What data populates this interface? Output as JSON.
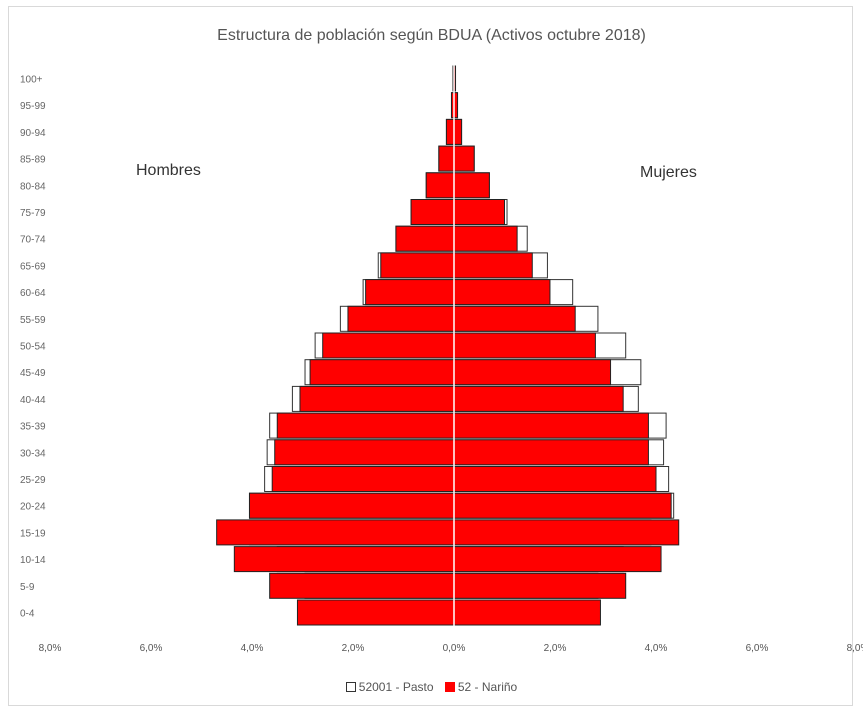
{
  "chart_data": {
    "type": "bar",
    "orientation": "horizontal",
    "title": "Estructura de población según BDUA (Activos octubre 2018)",
    "side_labels": {
      "left": "Hombres",
      "right": "Mujeres"
    },
    "categories": [
      "100+",
      "95-99",
      "90-94",
      "85-89",
      "80-84",
      "75-79",
      "70-74",
      "65-69",
      "60-64",
      "55-59",
      "50-54",
      "45-49",
      "40-44",
      "35-39",
      "30-34",
      "25-29",
      "20-24",
      "15-19",
      "10-14",
      "5-9",
      "0-4"
    ],
    "x_ticks": [
      "8,0%",
      "6,0%",
      "4,0%",
      "2,0%",
      "0,0%",
      "2,0%",
      "4,0%",
      "6,0%",
      "8,0%"
    ],
    "xlim": [
      -8.0,
      8.0
    ],
    "grid": false,
    "legend_position": "bottom",
    "series": [
      {
        "name": "52001 - Pasto",
        "color": "#ffffff",
        "stroke": "#333333",
        "men": [
          0.02,
          0.05,
          0.15,
          0.3,
          0.55,
          0.85,
          1.15,
          1.5,
          1.8,
          2.25,
          2.75,
          2.95,
          3.2,
          3.65,
          3.7,
          3.75,
          4.05,
          4.05,
          3.5,
          2.95,
          2.75
        ],
        "women": [
          0.03,
          0.07,
          0.15,
          0.4,
          0.7,
          1.05,
          1.45,
          1.85,
          2.35,
          2.85,
          3.4,
          3.7,
          3.65,
          4.2,
          4.15,
          4.25,
          4.35,
          3.9,
          3.35,
          2.85,
          2.65
        ]
      },
      {
        "name": "52 - Nariño",
        "color": "#ff0000",
        "stroke": "#222222",
        "men": [
          0.02,
          0.05,
          0.15,
          0.3,
          0.55,
          0.85,
          1.15,
          1.45,
          1.75,
          2.1,
          2.6,
          2.85,
          3.05,
          3.5,
          3.55,
          3.6,
          4.05,
          4.7,
          4.35,
          3.65,
          3.1
        ],
        "women": [
          0.03,
          0.07,
          0.15,
          0.4,
          0.7,
          1.0,
          1.25,
          1.55,
          1.9,
          2.4,
          2.8,
          3.1,
          3.35,
          3.85,
          3.85,
          4.0,
          4.3,
          4.45,
          4.1,
          3.4,
          2.9
        ]
      }
    ]
  },
  "colors": {
    "accent": "#ff0000",
    "frame": "#d9d9d9"
  }
}
